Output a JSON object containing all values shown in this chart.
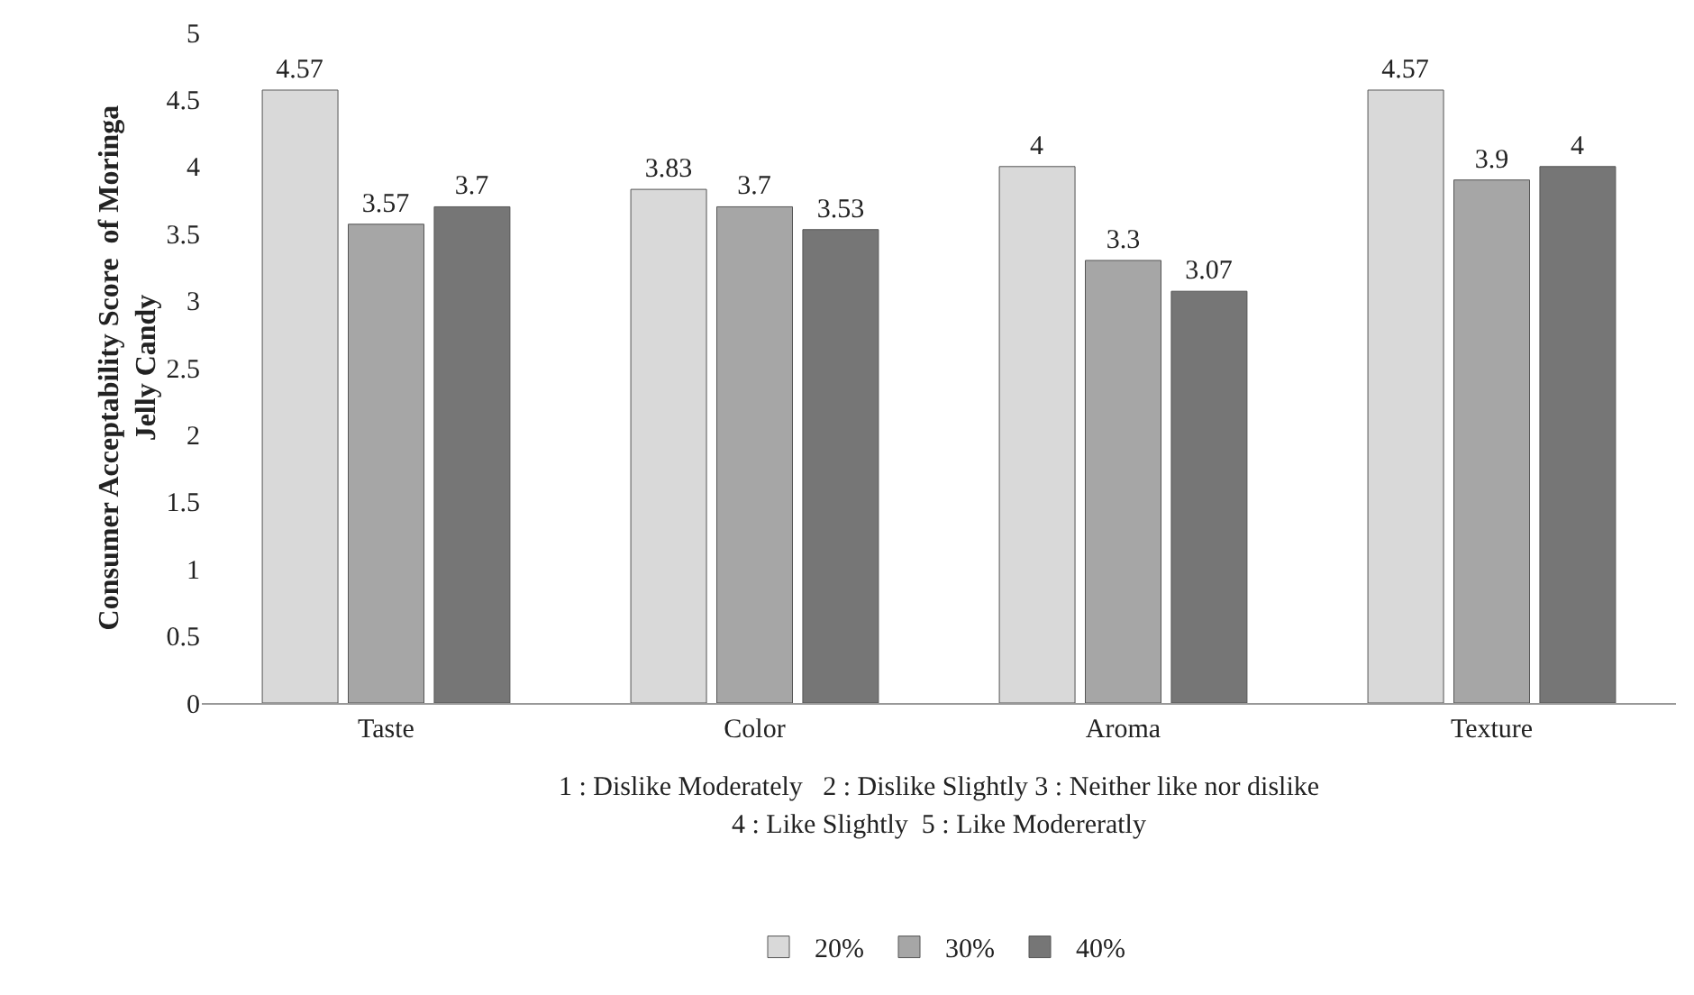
{
  "chart_data": {
    "type": "bar",
    "ylabel": "Consumer Acceptability Score  of Moringa Jelly Candy",
    "categories": [
      "Taste",
      "Color",
      "Aroma",
      "Texture"
    ],
    "series": [
      {
        "name": "20%",
        "color": "#d9d9d9",
        "values": [
          4.57,
          3.83,
          4,
          4.57
        ]
      },
      {
        "name": "30%",
        "color": "#a6a6a6",
        "values": [
          3.57,
          3.7,
          3.3,
          3.9
        ]
      },
      {
        "name": "40%",
        "color": "#767676",
        "values": [
          3.7,
          3.53,
          3.07,
          4
        ]
      }
    ],
    "ylim": [
      0,
      5
    ],
    "yticks": [
      0,
      0.5,
      1,
      1.5,
      2,
      2.5,
      3,
      3.5,
      4,
      4.5,
      5
    ],
    "annotations": [
      "1 : Dislike Moderately   2 : Dislike Slightly 3 : Neither like nor dislike",
      "4 : Like Slightly  5 : Like Modereratly"
    ],
    "data_labels": true,
    "grid": false,
    "legend": "bottom"
  }
}
